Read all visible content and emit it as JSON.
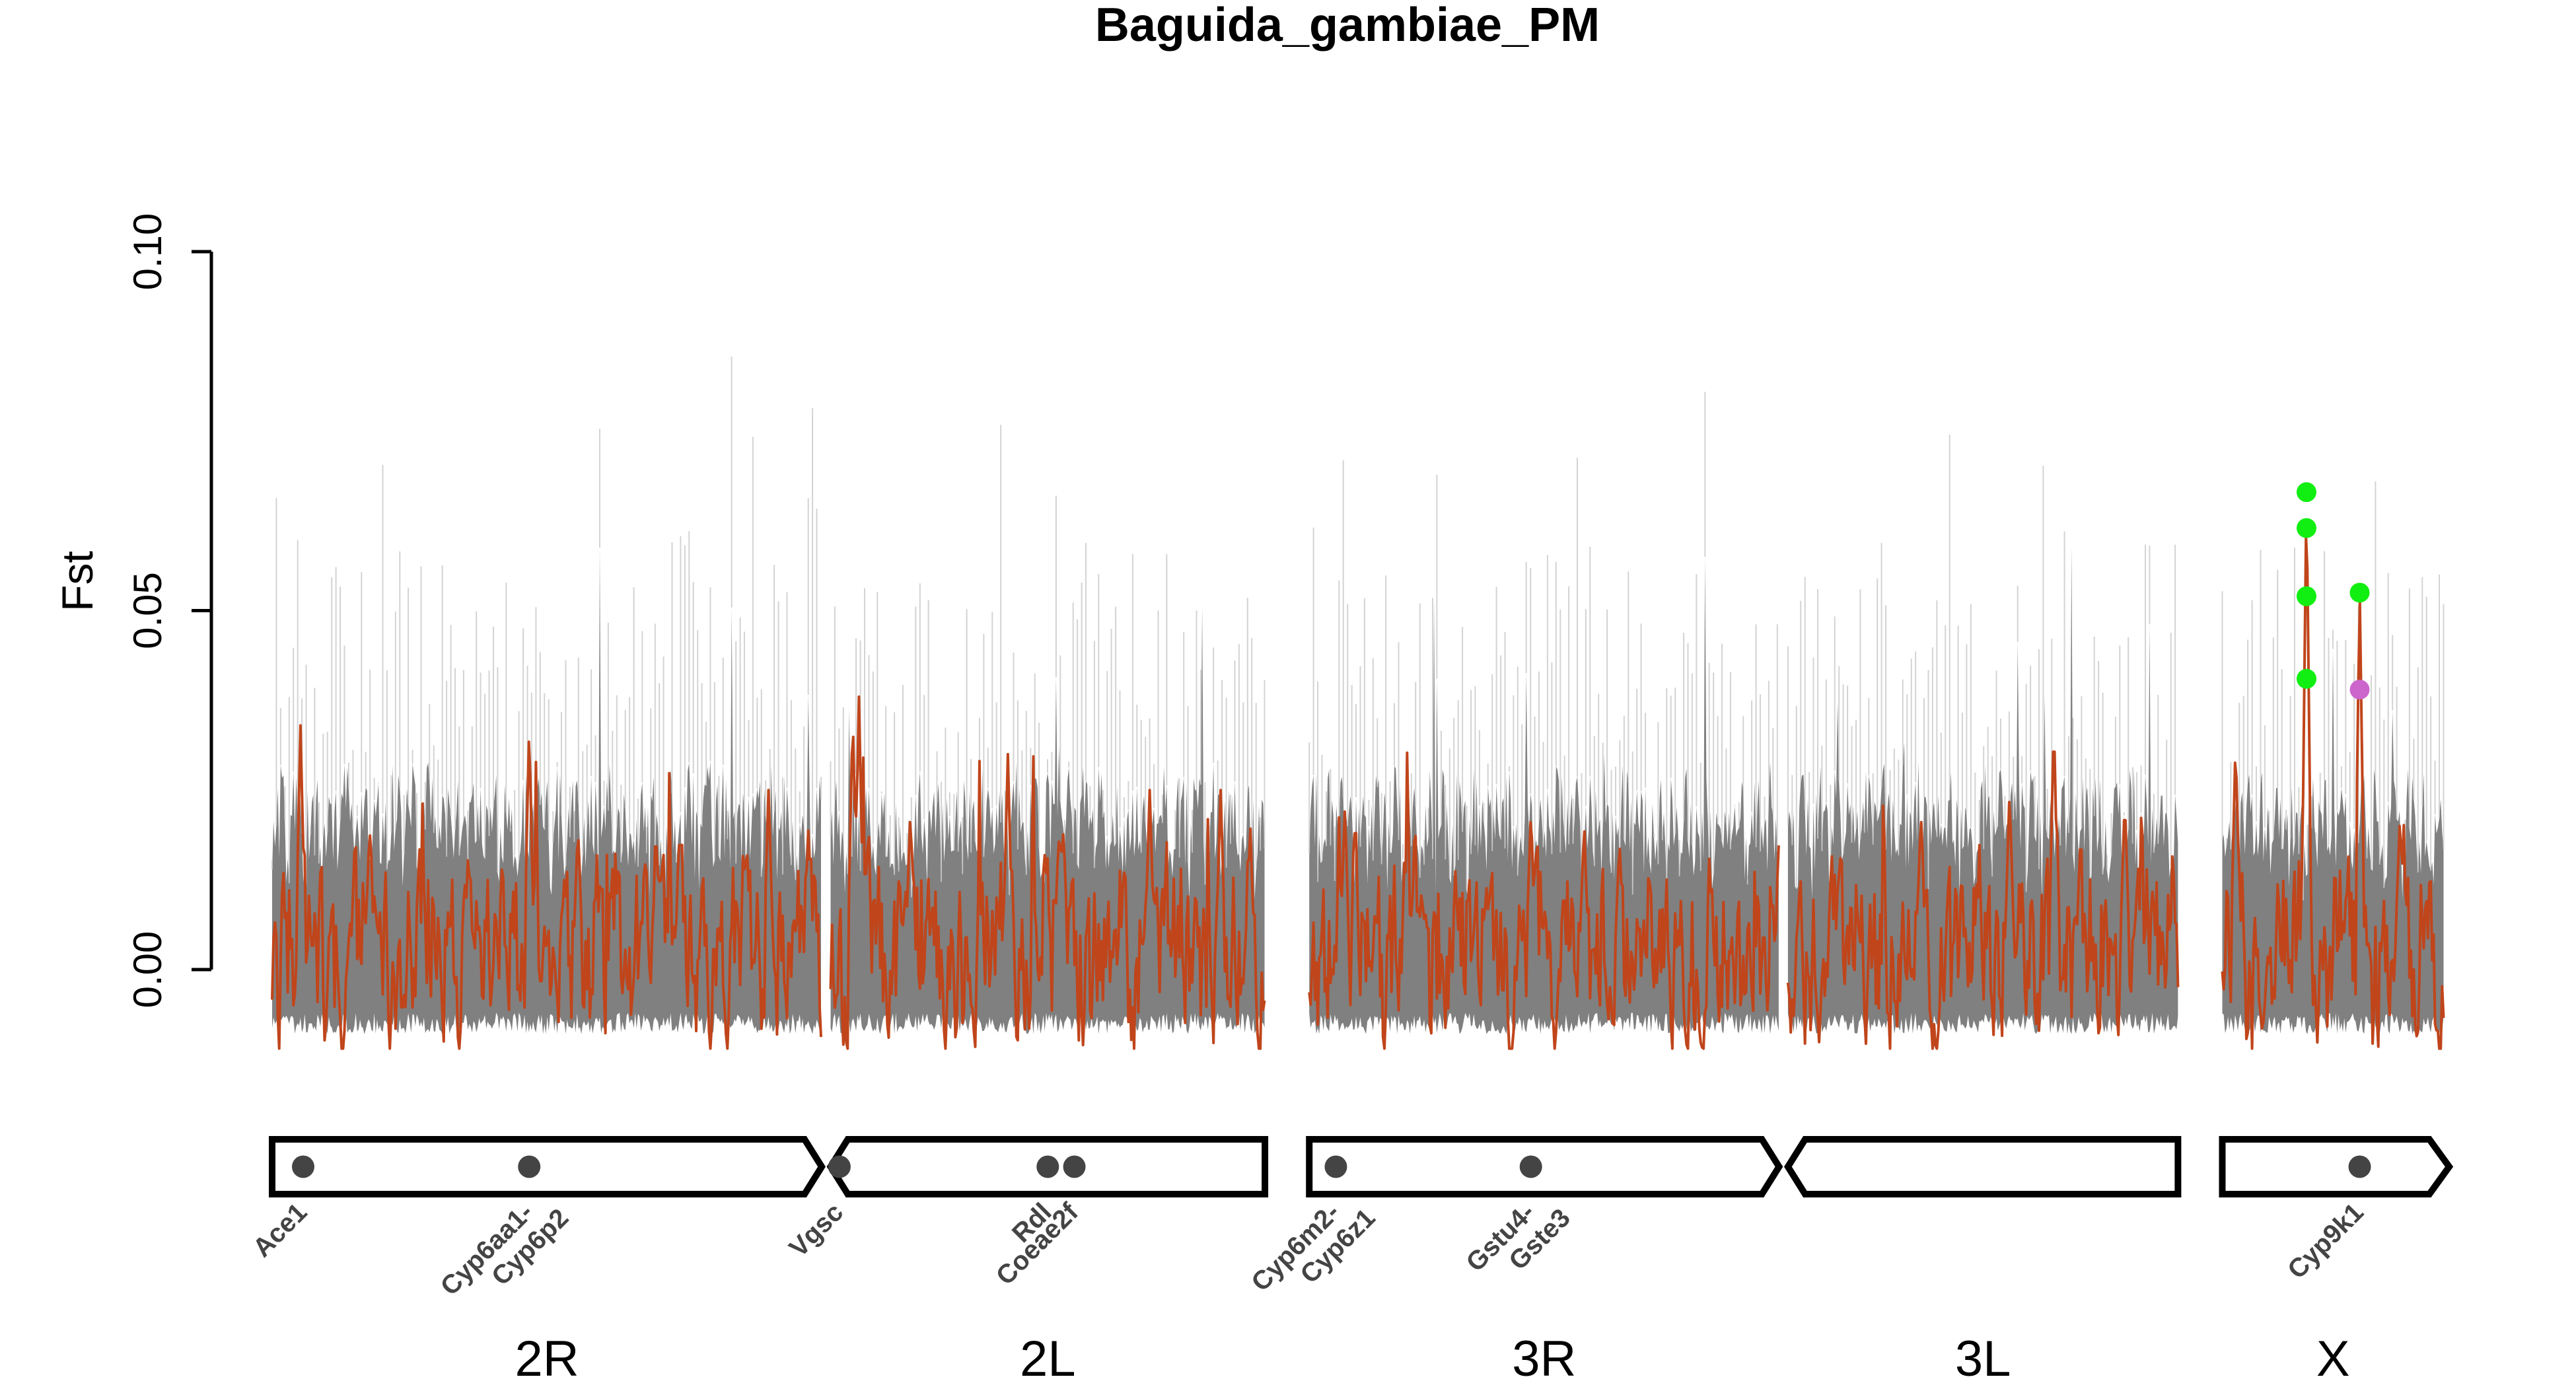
{
  "chart_data": {
    "type": "line",
    "title": "Baguida_gambiae_PM",
    "ylabel": "Fst",
    "xlabel": "",
    "ylim": [
      -0.015,
      0.125
    ],
    "yticks": [
      {
        "value": 0.0,
        "label": "0.00"
      },
      {
        "value": 0.05,
        "label": "0.05"
      },
      {
        "value": 0.1,
        "label": "0.10"
      }
    ],
    "grid": false,
    "colors": {
      "observed": "#c0451b",
      "permutations": "#808080",
      "permutation_light": "#c8c8c8",
      "peak_marker": "#11ee11",
      "secondary_marker": "#cc66cc",
      "gene_marker": "#444444"
    },
    "chromosomes": [
      {
        "name": "2R",
        "start": 0.0,
        "end": 62.0,
        "shape": "left",
        "seed": 11,
        "peaks": [
          [
            3.2,
            0.034
          ],
          [
            11.0,
            0.02
          ],
          [
            29.0,
            0.034
          ],
          [
            34.5,
            0.02
          ],
          [
            46.0,
            0.02
          ],
          [
            56.0,
            0.025
          ],
          [
            60.5,
            0.02
          ]
        ]
      },
      {
        "name": "2L",
        "start": 63.0,
        "end": 112.0,
        "shape": "right",
        "seed": 23,
        "peaks": [
          [
            65.5,
            0.036
          ],
          [
            66.2,
            0.038
          ],
          [
            72.0,
            0.022
          ],
          [
            83.0,
            0.03
          ],
          [
            99.0,
            0.025
          ],
          [
            107.0,
            0.025
          ]
        ]
      },
      {
        "name": "3R",
        "start": 117.0,
        "end": 170.0,
        "shape": "left",
        "seed": 37,
        "peaks": [
          [
            121.0,
            0.022
          ],
          [
            142.0,
            0.022
          ],
          [
            148.0,
            0.02
          ],
          [
            152.0,
            0.018
          ]
        ]
      },
      {
        "name": "3L",
        "start": 171.0,
        "end": 215.0,
        "shape": "right",
        "seed": 49,
        "peaks": [
          [
            186.0,
            0.022
          ],
          [
            196.0,
            0.025
          ],
          [
            201.0,
            0.035
          ],
          [
            209.0,
            0.024
          ]
        ]
      },
      {
        "name": "X",
        "start": 220.0,
        "end": 245.0,
        "shape": "arrow",
        "seed": 61,
        "peaks": [
          [
            221.5,
            0.032
          ],
          [
            229.5,
            0.067
          ],
          [
            235.5,
            0.053
          ],
          [
            240.0,
            0.02
          ]
        ]
      }
    ],
    "highlight_points": [
      {
        "x": 229.5,
        "y": 0.0665,
        "color": "#11ee11"
      },
      {
        "x": 229.5,
        "y": 0.0615,
        "color": "#11ee11"
      },
      {
        "x": 229.5,
        "y": 0.052,
        "color": "#11ee11"
      },
      {
        "x": 229.5,
        "y": 0.0405,
        "color": "#11ee11"
      },
      {
        "x": 235.5,
        "y": 0.0525,
        "color": "#11ee11"
      },
      {
        "x": 235.5,
        "y": 0.039,
        "color": "#cc66cc"
      }
    ],
    "genes": [
      {
        "x": 3.5,
        "label": "Ace1"
      },
      {
        "x": 29.0,
        "label": "Cyp6aa1-\nCyp6p2"
      },
      {
        "x": 64.0,
        "label": "Vgsc"
      },
      {
        "x": 87.5,
        "label": "Rdl"
      },
      {
        "x": 90.5,
        "label": "Coeae2f"
      },
      {
        "x": 120.0,
        "label": "Cyp6m2-\nCyp6z1"
      },
      {
        "x": 142.0,
        "label": "Gstu4-\nGste3"
      },
      {
        "x": 235.5,
        "label": "Cyp9k1"
      }
    ]
  }
}
